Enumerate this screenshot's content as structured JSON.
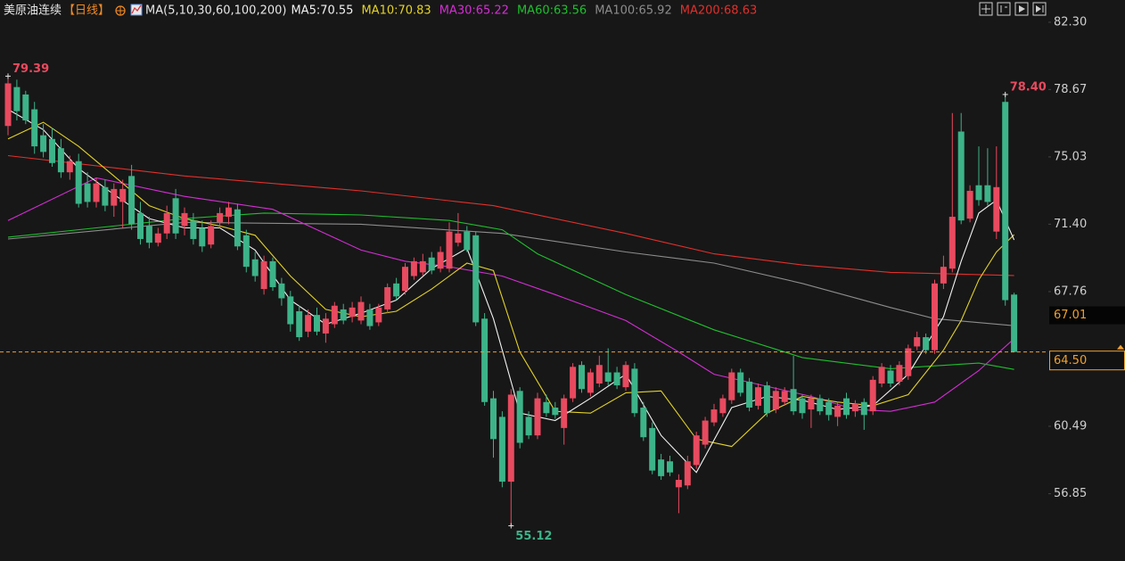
{
  "chart_data": {
    "type": "candlestick",
    "title": "美原油连续",
    "period": "【日线】",
    "indicator": "MA(5,10,30,60,100,200)",
    "up_color": "#e84a5f",
    "down_color": "#3db389",
    "ylim": [
      53.22,
      83.5
    ],
    "yticks": [
      {
        "value": 82.3,
        "label": "82.30"
      },
      {
        "value": 78.67,
        "label": "78.67"
      },
      {
        "value": 75.03,
        "label": "75.03"
      },
      {
        "value": 71.4,
        "label": "71.40"
      },
      {
        "value": 67.76,
        "label": "67.76"
      },
      {
        "value": 60.49,
        "label": "60.49"
      },
      {
        "value": 56.85,
        "label": "56.85"
      }
    ],
    "open": [
      76.7,
      78.8,
      78.4,
      77.6,
      76.2,
      76.0,
      75.5,
      74.2,
      74.8,
      73.6,
      72.6,
      73.4,
      72.4,
      72.6,
      74.0,
      72.0,
      71.3,
      70.4,
      70.9,
      72.8,
      71.3,
      71.6,
      71.2,
      70.3,
      71.5,
      71.8,
      72.2,
      70.8,
      69.5,
      67.9,
      69.4,
      68.2,
      67.5,
      66.7,
      65.6,
      66.5,
      65.5,
      66.0,
      66.8,
      66.4,
      66.2,
      66.8,
      66.1,
      66.8,
      68.2,
      67.8,
      68.6,
      68.8,
      69.6,
      69.0,
      69.0,
      70.4,
      71.0,
      70.8,
      66.3,
      62.0,
      61.0,
      57.5,
      62.4,
      61.0,
      60.0,
      61.8,
      61.5,
      60.4,
      62.0,
      63.8,
      62.3,
      62.8,
      63.4,
      63.4,
      62.6,
      63.6,
      61.5,
      60.4,
      58.7,
      58.6,
      57.2,
      57.3,
      58.4,
      59.5,
      60.7,
      61.2,
      61.9,
      63.4,
      62.9,
      61.6,
      62.7,
      61.4,
      61.8,
      62.5,
      62.0,
      61.4,
      62.0,
      61.8,
      61.0,
      62.0,
      61.3,
      61.8,
      61.3,
      62.8,
      63.5,
      62.9,
      63.2,
      64.8,
      65.3,
      64.6,
      68.2,
      69.0,
      76.4,
      71.7,
      73.5,
      73.5,
      71.0,
      78.0,
      67.6
    ],
    "high": [
      79.39,
      79.2,
      78.6,
      78.0,
      76.8,
      76.6,
      76.0,
      75.1,
      75.2,
      74.2,
      73.9,
      73.8,
      73.6,
      73.8,
      74.6,
      72.6,
      71.8,
      71.2,
      72.4,
      73.3,
      72.3,
      72.0,
      71.6,
      71.6,
      72.3,
      72.6,
      72.5,
      71.1,
      69.9,
      69.7,
      69.6,
      68.5,
      67.8,
      67.0,
      66.8,
      66.9,
      66.6,
      67.2,
      67.1,
      67.2,
      67.5,
      67.1,
      67.1,
      68.2,
      68.5,
      69.3,
      69.6,
      69.8,
      69.9,
      70.2,
      71.5,
      72.0,
      71.3,
      71.0,
      66.6,
      62.4,
      61.3,
      62.5,
      62.6,
      61.3,
      62.3,
      62.2,
      61.8,
      62.2,
      63.9,
      64.0,
      63.6,
      64.3,
      64.7,
      63.7,
      64.0,
      63.9,
      61.8,
      60.7,
      59.0,
      58.9,
      57.9,
      58.9,
      60.2,
      61.0,
      61.7,
      62.2,
      63.6,
      63.6,
      63.1,
      62.8,
      62.9,
      62.6,
      62.6,
      64.3,
      62.2,
      62.2,
      62.2,
      62.0,
      61.8,
      62.3,
      61.9,
      62.0,
      63.2,
      63.9,
      63.8,
      64.0,
      64.9,
      65.6,
      65.5,
      68.4,
      69.7,
      77.4,
      77.4,
      73.5,
      75.6,
      75.5,
      75.6,
      78.4,
      67.7
    ],
    "low": [
      76.2,
      77.0,
      76.8,
      75.2,
      75.0,
      74.5,
      73.9,
      73.8,
      72.3,
      72.3,
      72.3,
      72.1,
      71.8,
      71.2,
      71.1,
      70.3,
      70.1,
      70.2,
      70.6,
      70.6,
      70.8,
      70.3,
      69.9,
      70.1,
      71.2,
      71.4,
      70.0,
      68.8,
      68.3,
      67.6,
      67.8,
      67.0,
      65.6,
      65.1,
      65.3,
      65.4,
      65.0,
      65.8,
      66.0,
      66.1,
      66.0,
      65.7,
      65.9,
      66.6,
      67.3,
      67.6,
      68.4,
      68.6,
      68.7,
      68.8,
      68.8,
      70.2,
      69.9,
      65.9,
      61.6,
      58.8,
      57.2,
      55.12,
      59.3,
      59.8,
      59.8,
      61.0,
      60.9,
      59.5,
      61.8,
      62.3,
      62.1,
      62.6,
      62.7,
      62.5,
      62.4,
      61.0,
      59.7,
      57.9,
      57.6,
      57.8,
      55.8,
      57.1,
      58.2,
      59.3,
      60.5,
      61.0,
      61.7,
      62.1,
      61.3,
      61.4,
      61.0,
      61.2,
      61.6,
      61.1,
      60.9,
      60.4,
      61.1,
      60.8,
      60.5,
      60.9,
      61.0,
      60.3,
      61.1,
      62.6,
      62.6,
      62.7,
      63.0,
      64.6,
      64.4,
      64.4,
      67.9,
      68.8,
      71.4,
      71.5,
      72.4,
      72.4,
      70.6,
      67.0,
      64.5
    ],
    "close": [
      79.0,
      77.5,
      77.0,
      75.6,
      75.3,
      74.7,
      74.2,
      74.8,
      72.5,
      72.6,
      73.6,
      72.4,
      73.3,
      73.3,
      71.4,
      70.6,
      70.4,
      70.9,
      72.0,
      70.9,
      72.0,
      70.6,
      70.2,
      71.3,
      72.0,
      72.3,
      70.2,
      69.1,
      68.6,
      69.4,
      68.0,
      67.4,
      66.0,
      65.3,
      66.5,
      65.6,
      66.3,
      67.0,
      66.2,
      66.9,
      67.2,
      65.9,
      66.9,
      68.0,
      67.5,
      69.1,
      69.4,
      69.4,
      68.9,
      69.9,
      71.0,
      70.9,
      70.0,
      66.1,
      61.8,
      59.8,
      57.5,
      62.2,
      59.6,
      60.0,
      62.0,
      61.2,
      61.1,
      62.0,
      63.7,
      62.5,
      63.4,
      63.8,
      62.9,
      62.7,
      63.8,
      61.2,
      59.9,
      58.1,
      57.8,
      58.0,
      57.6,
      58.6,
      60.0,
      60.8,
      61.4,
      62.0,
      63.4,
      62.3,
      61.5,
      62.6,
      61.2,
      62.4,
      62.4,
      61.3,
      61.2,
      62.0,
      61.3,
      61.1,
      61.6,
      61.1,
      61.7,
      61.1,
      63.0,
      63.7,
      62.8,
      63.8,
      64.7,
      65.3,
      64.6,
      68.2,
      69.1,
      71.8,
      71.6,
      73.2,
      72.7,
      72.6,
      73.4,
      67.3,
      64.5
    ],
    "series": [
      {
        "name": "MA5:70.55",
        "color": "#f2f2f2",
        "x": [
          0,
          4,
          8,
          12,
          16,
          20,
          24,
          28,
          32,
          36,
          40,
          44,
          48,
          52,
          55,
          58,
          62,
          66,
          70,
          74,
          78,
          82,
          86,
          90,
          94,
          98,
          102,
          106,
          108,
          110,
          112,
          114
        ],
        "values": [
          77.6,
          76.5,
          74.4,
          73.0,
          71.7,
          71.2,
          71.2,
          70.0,
          67.3,
          66.0,
          66.6,
          67.3,
          69.0,
          70.1,
          66.3,
          61.2,
          60.8,
          62.0,
          63.3,
          60.0,
          58.0,
          61.5,
          62.1,
          61.9,
          61.4,
          61.6,
          63.3,
          66.4,
          69.4,
          72.0,
          72.7,
          70.55
        ]
      },
      {
        "name": "MA10:70.83",
        "color": "#e3d22a",
        "x": [
          0,
          4,
          8,
          12,
          16,
          20,
          24,
          28,
          32,
          36,
          40,
          44,
          48,
          52,
          55,
          58,
          62,
          66,
          70,
          74,
          78,
          82,
          86,
          90,
          94,
          98,
          102,
          106,
          108,
          110,
          112,
          114
        ],
        "values": [
          76.0,
          76.9,
          75.6,
          74.0,
          72.4,
          71.7,
          71.3,
          70.8,
          68.6,
          66.8,
          66.4,
          66.7,
          67.9,
          69.3,
          68.9,
          64.5,
          61.3,
          61.2,
          62.3,
          62.4,
          59.8,
          59.4,
          61.2,
          62.1,
          61.8,
          61.6,
          62.2,
          64.6,
          66.2,
          68.4,
          69.9,
          70.83
        ]
      },
      {
        "name": "MA30:65.22",
        "color": "#d42ed4",
        "x": [
          0,
          10,
          20,
          30,
          40,
          45,
          50,
          56,
          62,
          70,
          76,
          80,
          91,
          96,
          100,
          105,
          110,
          114
        ],
        "values": [
          71.6,
          73.9,
          72.9,
          72.2,
          70.0,
          69.4,
          69.1,
          68.6,
          67.6,
          66.2,
          64.5,
          63.3,
          62.1,
          61.4,
          61.3,
          61.8,
          63.5,
          65.22
        ]
      },
      {
        "name": "MA60:63.56",
        "color": "#1fbf2f",
        "x": [
          0,
          10,
          20,
          29,
          40,
          50,
          56,
          60,
          70,
          80,
          90,
          100,
          110,
          114
        ],
        "values": [
          70.7,
          71.2,
          71.7,
          72.0,
          71.9,
          71.6,
          71.1,
          69.8,
          67.6,
          65.7,
          64.2,
          63.6,
          63.9,
          63.56
        ]
      },
      {
        "name": "MA100:65.92",
        "color": "#8c8c8c",
        "x": [
          0,
          20,
          40,
          56,
          70,
          80,
          90,
          100,
          105,
          114
        ],
        "values": [
          70.6,
          71.5,
          71.4,
          70.9,
          69.9,
          69.3,
          68.2,
          66.9,
          66.3,
          65.92
        ]
      },
      {
        "name": "MA200:68.63",
        "color": "#e0302c",
        "x": [
          0,
          20,
          40,
          55,
          70,
          80,
          90,
          100,
          114
        ],
        "values": [
          75.1,
          74.0,
          73.2,
          72.4,
          70.9,
          69.8,
          69.2,
          68.8,
          68.63
        ]
      }
    ],
    "last_price": {
      "value": 64.5,
      "label": "64.50",
      "color": "#f0a030"
    },
    "price_tag": {
      "value": 67.01,
      "color": "#f0a030"
    },
    "annotations": [
      {
        "value": 79.39,
        "color": "#e84a5f"
      },
      {
        "value": 78.4,
        "label": "78.40",
        "color": "#e84a5f"
      },
      {
        "value": 55.12,
        "color": "#3db389"
      }
    ]
  }
}
